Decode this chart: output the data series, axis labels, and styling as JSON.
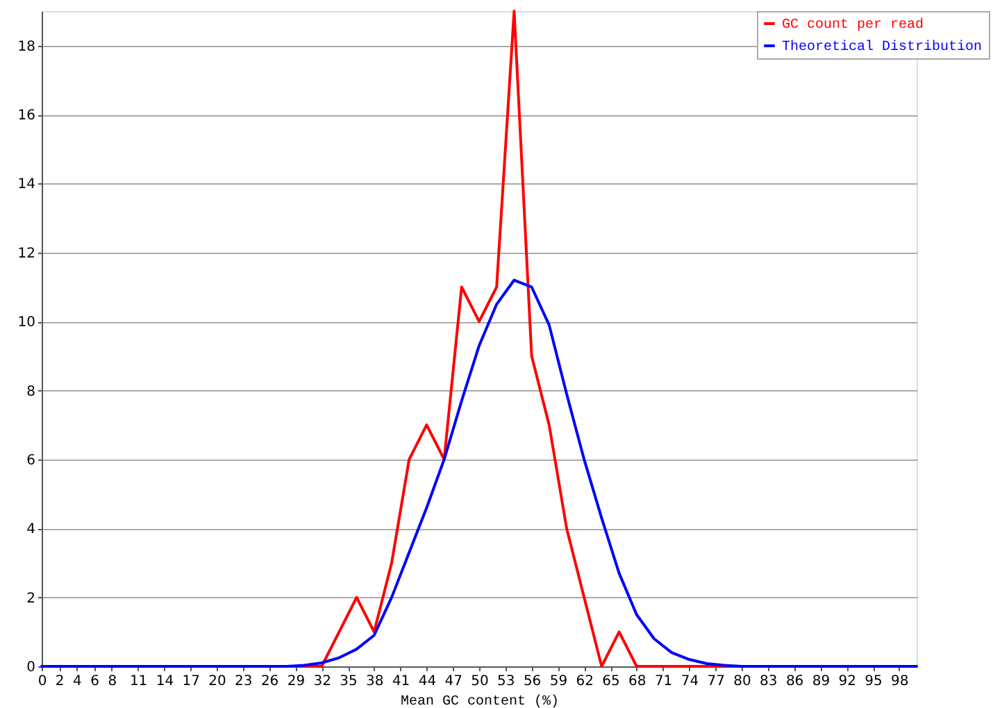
{
  "chart_data": {
    "type": "line",
    "xlabel": "Mean GC content (%)",
    "x": [
      0,
      2,
      4,
      6,
      8,
      10,
      12,
      14,
      16,
      18,
      20,
      22,
      24,
      26,
      28,
      30,
      32,
      34,
      36,
      38,
      40,
      42,
      44,
      46,
      48,
      50,
      52,
      54,
      56,
      58,
      60,
      62,
      64,
      66,
      68,
      70,
      72,
      74,
      76,
      78,
      80,
      82,
      84,
      86,
      88,
      90,
      92,
      94,
      96,
      98,
      100
    ],
    "series": [
      {
        "name": "GC count per read",
        "color": "#ff0000",
        "values": [
          null,
          null,
          null,
          null,
          null,
          null,
          null,
          null,
          null,
          null,
          null,
          null,
          null,
          0,
          0,
          0,
          0,
          1,
          2,
          1,
          3,
          6,
          7,
          6,
          11,
          10,
          11,
          19,
          9,
          7,
          4,
          2,
          0,
          1,
          0,
          0,
          0,
          0,
          0,
          0,
          0,
          0,
          null,
          null,
          null,
          null,
          null,
          null,
          null,
          null,
          null
        ]
      },
      {
        "name": "Theoretical Distribution",
        "color": "#0000ff",
        "values": [
          0,
          0,
          0,
          0,
          0,
          0,
          0,
          0,
          0,
          0,
          0,
          0,
          0,
          0,
          0,
          0.03,
          0.1,
          0.25,
          0.5,
          0.9,
          2.0,
          3.3,
          4.6,
          6.0,
          7.7,
          9.3,
          10.5,
          11.2,
          11.0,
          9.9,
          7.9,
          6.0,
          4.3,
          2.7,
          1.5,
          0.8,
          0.4,
          0.2,
          0.08,
          0.03,
          0,
          0,
          0,
          0,
          0,
          0,
          0,
          0,
          0,
          0,
          0
        ]
      }
    ],
    "xlim": [
      0,
      100
    ],
    "xticks": [
      0,
      2,
      4,
      6,
      8,
      11,
      14,
      17,
      20,
      23,
      26,
      29,
      32,
      35,
      38,
      41,
      44,
      47,
      50,
      53,
      56,
      59,
      62,
      65,
      68,
      71,
      74,
      77,
      80,
      83,
      86,
      89,
      92,
      95,
      98
    ],
    "ylim": [
      0,
      19
    ],
    "yticks": [
      0,
      2,
      4,
      6,
      8,
      10,
      12,
      14,
      16,
      18
    ],
    "grid": "y",
    "legend": "top right",
    "marker": "none",
    "line_style": "solid"
  }
}
